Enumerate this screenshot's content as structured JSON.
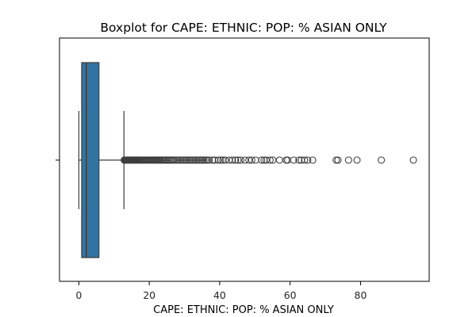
{
  "chart_data": {
    "type": "boxplot",
    "orientation": "horizontal",
    "title": "Boxplot for CAPE: ETHNIC: POP: % ASIAN ONLY",
    "xlabel": "CAPE: ETHNIC: POP: % ASIAN ONLY",
    "ylabel": "",
    "xlim": [
      -5.5,
      99.5
    ],
    "xticks": [
      0,
      20,
      40,
      60,
      80
    ],
    "xtick_labels": [
      "0",
      "20",
      "40",
      "60",
      "80"
    ],
    "grid": false,
    "box_color": "#3274a1",
    "line_color": "#3d3d3d",
    "stats": {
      "whisker_low": 0.0,
      "q1": 0.8,
      "median": 2.1,
      "q3": 5.7,
      "whisker_high": 12.8
    },
    "outliers": [
      12.9,
      13.0,
      13.1,
      13.2,
      13.3,
      13.4,
      13.5,
      13.6,
      13.7,
      13.8,
      13.9,
      14.0,
      14.2,
      14.4,
      14.6,
      14.8,
      15.0,
      15.2,
      15.4,
      15.6,
      15.8,
      16.0,
      16.2,
      16.4,
      16.6,
      16.8,
      17.0,
      17.3,
      17.6,
      17.9,
      18.2,
      18.5,
      18.8,
      19.1,
      19.4,
      19.7,
      20.0,
      20.3,
      20.6,
      20.9,
      21.2,
      21.5,
      21.8,
      22.1,
      22.4,
      22.7,
      23.0,
      23.4,
      23.8,
      24.2,
      24.6,
      25.0,
      25.4,
      25.8,
      26.2,
      26.6,
      27.0,
      27.5,
      28.0,
      28.5,
      29.0,
      29.5,
      30.0,
      30.5,
      31.0,
      31.5,
      32.0,
      32.5,
      33.0,
      33.5,
      34.0,
      34.5,
      35.0,
      35.5,
      36.0,
      36.5,
      37.0,
      38.0,
      38.6,
      39.6,
      40.3,
      40.9,
      41.6,
      42.7,
      43.6,
      44.5,
      45.2,
      46.0,
      47.2,
      48.3,
      49.1,
      50.2,
      51.9,
      52.6,
      53.2,
      54.3,
      55.1,
      57.0,
      58.9,
      59.3,
      61.0,
      62.5,
      63.2,
      64.1,
      65.0,
      66.4,
      73.1,
      73.6,
      76.6,
      79.0,
      85.9,
      95.0
    ]
  }
}
